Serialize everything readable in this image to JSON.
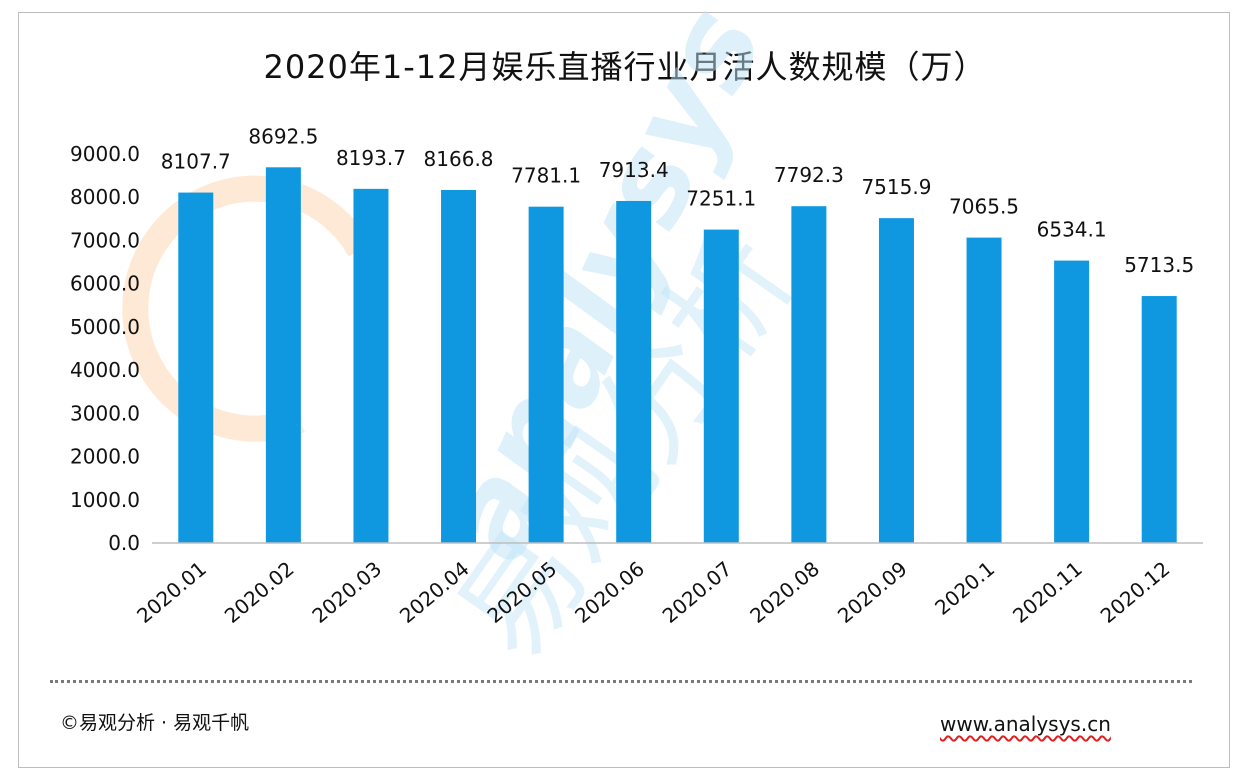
{
  "chart_data": {
    "type": "bar",
    "title": "2020年1-12月娱乐直播行业月活人数规模（万）",
    "categories": [
      "2020.01",
      "2020.02",
      "2020.03",
      "2020.04",
      "2020.05",
      "2020.06",
      "2020.07",
      "2020.08",
      "2020.09",
      "2020.1",
      "2020.11",
      "2020.12"
    ],
    "values": [
      8107.7,
      8692.5,
      8193.7,
      8166.8,
      7781.1,
      7913.4,
      7251.1,
      7792.3,
      7515.9,
      7065.5,
      6534.1,
      5713.5
    ],
    "value_labels": [
      "8107.7",
      "8692.5",
      "8193.7",
      "8166.8",
      "7781.1",
      "7913.4",
      "7251.1",
      "7792.3",
      "7515.9",
      "7065.5",
      "6534.1",
      "5713.5"
    ],
    "yticks": [
      "0.0",
      "1000.0",
      "2000.0",
      "3000.0",
      "4000.0",
      "5000.0",
      "6000.0",
      "7000.0",
      "8000.0",
      "9000.0"
    ],
    "ylim": [
      0,
      9000
    ],
    "xlabel": "",
    "ylabel": "",
    "grid": false,
    "bar_color": "#0f98e0"
  },
  "watermark": {
    "latin": "analysys",
    "chinese": "易观分析"
  },
  "footer": {
    "copyright": "©易观分析 · 易观千帆",
    "url": "www.analysys.cn"
  }
}
